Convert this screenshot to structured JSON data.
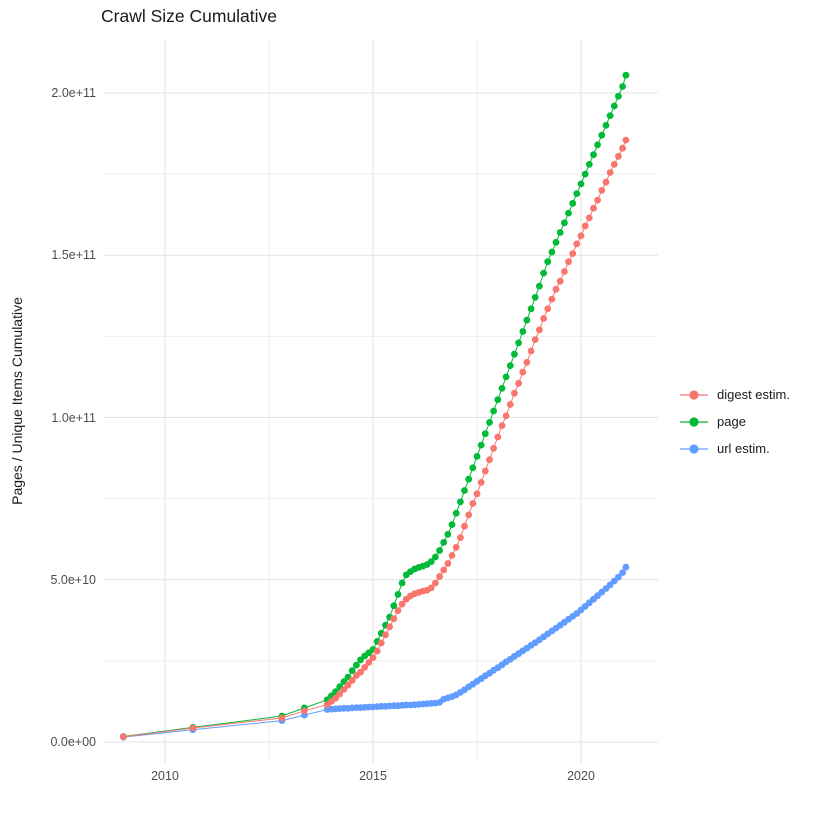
{
  "chart_data": {
    "type": "scatter",
    "title": "Crawl Size Cumulative",
    "xlabel": "",
    "ylabel": "Pages / Unique Items Cumulative",
    "value_unit": "1e9 (values below are billions of pages / items)",
    "grid": "on",
    "legend_position": "right",
    "xlim": [
      2008.5,
      2021.85
    ],
    "ylim_e9": [
      -6,
      216
    ],
    "x_axis": {
      "major_ticks": [
        2010,
        2015,
        2020
      ],
      "minor_ticks": [
        2012.5,
        2017.5
      ],
      "tick_labels": [
        "2010",
        "2015",
        "2020"
      ]
    },
    "y_axis": {
      "major_ticks_e9": [
        0,
        50,
        100,
        150,
        200
      ],
      "minor_ticks_e9": [
        25,
        75,
        125,
        175
      ],
      "tick_labels": [
        "0.0e+00",
        "5.0e+10",
        "1.0e+11",
        "1.5e+11",
        "2.0e+11"
      ]
    },
    "series": [
      {
        "name": "digest estim.",
        "color": "#F8766D",
        "points": [
          [
            2009.0,
            1.6
          ],
          [
            2010.67,
            4.3
          ],
          [
            2012.81,
            7.4
          ],
          [
            2013.35,
            9.6
          ],
          [
            2013.9,
            11.5
          ],
          [
            2014.0,
            12.5
          ],
          [
            2014.1,
            13.5
          ],
          [
            2014.2,
            14.8
          ],
          [
            2014.3,
            16.2
          ],
          [
            2014.4,
            17.5
          ],
          [
            2014.5,
            19.0
          ],
          [
            2014.6,
            20.5
          ],
          [
            2014.7,
            21.5
          ],
          [
            2014.8,
            23.0
          ],
          [
            2014.9,
            24.5
          ],
          [
            2015.0,
            26.0
          ],
          [
            2015.1,
            28.0
          ],
          [
            2015.2,
            30.5
          ],
          [
            2015.3,
            33.0
          ],
          [
            2015.4,
            35.5
          ],
          [
            2015.5,
            38.0
          ],
          [
            2015.6,
            40.5
          ],
          [
            2015.7,
            42.5
          ],
          [
            2015.8,
            44.0
          ],
          [
            2015.9,
            45.0
          ],
          [
            2016.0,
            45.7
          ],
          [
            2016.1,
            46.1
          ],
          [
            2016.2,
            46.5
          ],
          [
            2016.3,
            46.8
          ],
          [
            2016.4,
            47.5
          ],
          [
            2016.5,
            49.0
          ],
          [
            2016.6,
            51.0
          ],
          [
            2016.7,
            53.0
          ],
          [
            2016.8,
            55.0
          ],
          [
            2016.9,
            57.5
          ],
          [
            2017.0,
            60.0
          ],
          [
            2017.1,
            63.0
          ],
          [
            2017.2,
            66.5
          ],
          [
            2017.3,
            70.0
          ],
          [
            2017.4,
            73.5
          ],
          [
            2017.5,
            76.5
          ],
          [
            2017.6,
            80.0
          ],
          [
            2017.7,
            83.5
          ],
          [
            2017.8,
            87.0
          ],
          [
            2017.9,
            90.5
          ],
          [
            2018.0,
            94.0
          ],
          [
            2018.1,
            97.5
          ],
          [
            2018.2,
            100.5
          ],
          [
            2018.3,
            104.0
          ],
          [
            2018.4,
            107.5
          ],
          [
            2018.5,
            110.5
          ],
          [
            2018.6,
            114.0
          ],
          [
            2018.7,
            117.0
          ],
          [
            2018.8,
            120.5
          ],
          [
            2018.9,
            124.0
          ],
          [
            2019.0,
            127.0
          ],
          [
            2019.1,
            130.5
          ],
          [
            2019.2,
            133.5
          ],
          [
            2019.3,
            136.5
          ],
          [
            2019.4,
            139.5
          ],
          [
            2019.5,
            142.0
          ],
          [
            2019.6,
            145.0
          ],
          [
            2019.7,
            148.0
          ],
          [
            2019.8,
            150.5
          ],
          [
            2019.9,
            153.5
          ],
          [
            2020.0,
            156.0
          ],
          [
            2020.1,
            159.0
          ],
          [
            2020.2,
            161.5
          ],
          [
            2020.3,
            164.5
          ],
          [
            2020.4,
            167.0
          ],
          [
            2020.5,
            170.0
          ],
          [
            2020.6,
            172.5
          ],
          [
            2020.7,
            175.5
          ],
          [
            2020.8,
            178.0
          ],
          [
            2020.9,
            180.5
          ],
          [
            2021.0,
            183.0
          ],
          [
            2021.08,
            185.5
          ]
        ]
      },
      {
        "name": "page",
        "color": "#00BA38",
        "points": [
          [
            2009.0,
            1.7
          ],
          [
            2010.67,
            4.5
          ],
          [
            2012.81,
            8.0
          ],
          [
            2013.35,
            10.5
          ],
          [
            2013.9,
            13.0
          ],
          [
            2014.0,
            14.2
          ],
          [
            2014.1,
            15.5
          ],
          [
            2014.2,
            17.0
          ],
          [
            2014.3,
            18.6
          ],
          [
            2014.4,
            20.0
          ],
          [
            2014.5,
            22.0
          ],
          [
            2014.6,
            23.7
          ],
          [
            2014.7,
            25.3
          ],
          [
            2014.8,
            26.5
          ],
          [
            2014.9,
            27.5
          ],
          [
            2015.0,
            28.5
          ],
          [
            2015.1,
            31.0
          ],
          [
            2015.2,
            33.5
          ],
          [
            2015.3,
            36.0
          ],
          [
            2015.4,
            38.5
          ],
          [
            2015.5,
            42.0
          ],
          [
            2015.6,
            45.5
          ],
          [
            2015.7,
            49.0
          ],
          [
            2015.8,
            51.5
          ],
          [
            2015.9,
            52.5
          ],
          [
            2016.0,
            53.3
          ],
          [
            2016.1,
            53.8
          ],
          [
            2016.2,
            54.2
          ],
          [
            2016.3,
            54.7
          ],
          [
            2016.4,
            55.6
          ],
          [
            2016.5,
            57.0
          ],
          [
            2016.6,
            59.0
          ],
          [
            2016.7,
            61.5
          ],
          [
            2016.8,
            64.0
          ],
          [
            2016.9,
            67.0
          ],
          [
            2017.0,
            70.5
          ],
          [
            2017.1,
            74.0
          ],
          [
            2017.2,
            77.5
          ],
          [
            2017.3,
            81.0
          ],
          [
            2017.4,
            84.5
          ],
          [
            2017.5,
            88.0
          ],
          [
            2017.6,
            91.5
          ],
          [
            2017.7,
            95.0
          ],
          [
            2017.8,
            98.5
          ],
          [
            2017.9,
            102.0
          ],
          [
            2018.0,
            105.5
          ],
          [
            2018.1,
            109.0
          ],
          [
            2018.2,
            112.5
          ],
          [
            2018.3,
            116.0
          ],
          [
            2018.4,
            119.5
          ],
          [
            2018.5,
            123.0
          ],
          [
            2018.6,
            126.5
          ],
          [
            2018.7,
            130.0
          ],
          [
            2018.8,
            133.5
          ],
          [
            2018.9,
            137.0
          ],
          [
            2019.0,
            140.5
          ],
          [
            2019.1,
            144.5
          ],
          [
            2019.2,
            148.0
          ],
          [
            2019.3,
            151.0
          ],
          [
            2019.4,
            154.0
          ],
          [
            2019.5,
            157.0
          ],
          [
            2019.6,
            160.0
          ],
          [
            2019.7,
            163.0
          ],
          [
            2019.8,
            166.0
          ],
          [
            2019.9,
            169.0
          ],
          [
            2020.0,
            172.0
          ],
          [
            2020.1,
            175.0
          ],
          [
            2020.2,
            178.0
          ],
          [
            2020.3,
            181.0
          ],
          [
            2020.4,
            184.0
          ],
          [
            2020.5,
            187.0
          ],
          [
            2020.6,
            190.0
          ],
          [
            2020.7,
            193.0
          ],
          [
            2020.8,
            196.0
          ],
          [
            2020.9,
            199.0
          ],
          [
            2021.0,
            202.0
          ],
          [
            2021.08,
            205.5
          ]
        ]
      },
      {
        "name": "url estim.",
        "color": "#619CFF",
        "points": [
          [
            2009.0,
            1.5
          ],
          [
            2010.67,
            3.8
          ],
          [
            2012.81,
            6.6
          ],
          [
            2013.35,
            8.3
          ],
          [
            2013.9,
            10.0
          ],
          [
            2014.0,
            10.1
          ],
          [
            2014.1,
            10.2
          ],
          [
            2014.2,
            10.3
          ],
          [
            2014.3,
            10.4
          ],
          [
            2014.4,
            10.4
          ],
          [
            2014.5,
            10.5
          ],
          [
            2014.6,
            10.6
          ],
          [
            2014.7,
            10.6
          ],
          [
            2014.8,
            10.7
          ],
          [
            2014.9,
            10.8
          ],
          [
            2015.0,
            10.8
          ],
          [
            2015.1,
            10.9
          ],
          [
            2015.2,
            11.0
          ],
          [
            2015.3,
            11.0
          ],
          [
            2015.4,
            11.1
          ],
          [
            2015.5,
            11.2
          ],
          [
            2015.6,
            11.2
          ],
          [
            2015.7,
            11.3
          ],
          [
            2015.8,
            11.4
          ],
          [
            2015.9,
            11.4
          ],
          [
            2016.0,
            11.5
          ],
          [
            2016.1,
            11.6
          ],
          [
            2016.2,
            11.7
          ],
          [
            2016.3,
            11.8
          ],
          [
            2016.4,
            11.9
          ],
          [
            2016.5,
            12.0
          ],
          [
            2016.6,
            12.2
          ],
          [
            2016.7,
            13.2
          ],
          [
            2016.8,
            13.6
          ],
          [
            2016.9,
            14.0
          ],
          [
            2017.0,
            14.5
          ],
          [
            2017.1,
            15.3
          ],
          [
            2017.2,
            16.1
          ],
          [
            2017.3,
            17.0
          ],
          [
            2017.4,
            17.8
          ],
          [
            2017.5,
            18.7
          ],
          [
            2017.6,
            19.5
          ],
          [
            2017.7,
            20.4
          ],
          [
            2017.8,
            21.2
          ],
          [
            2017.9,
            22.1
          ],
          [
            2018.0,
            22.9
          ],
          [
            2018.1,
            23.8
          ],
          [
            2018.2,
            24.7
          ],
          [
            2018.3,
            25.5
          ],
          [
            2018.4,
            26.4
          ],
          [
            2018.5,
            27.2
          ],
          [
            2018.6,
            28.1
          ],
          [
            2018.7,
            28.9
          ],
          [
            2018.8,
            29.8
          ],
          [
            2018.9,
            30.6
          ],
          [
            2019.0,
            31.5
          ],
          [
            2019.1,
            32.4
          ],
          [
            2019.2,
            33.3
          ],
          [
            2019.3,
            34.2
          ],
          [
            2019.4,
            35.1
          ],
          [
            2019.5,
            36.0
          ],
          [
            2019.6,
            36.9
          ],
          [
            2019.7,
            37.8
          ],
          [
            2019.8,
            38.7
          ],
          [
            2019.9,
            39.6
          ],
          [
            2020.0,
            40.7
          ],
          [
            2020.1,
            41.8
          ],
          [
            2020.2,
            42.9
          ],
          [
            2020.3,
            44.0
          ],
          [
            2020.4,
            45.1
          ],
          [
            2020.5,
            46.2
          ],
          [
            2020.6,
            47.3
          ],
          [
            2020.7,
            48.4
          ],
          [
            2020.8,
            49.6
          ],
          [
            2020.9,
            50.8
          ],
          [
            2021.0,
            52.2
          ],
          [
            2021.08,
            53.9
          ]
        ]
      }
    ],
    "draw_order": [
      1,
      2,
      0
    ],
    "grid_colors": {
      "major": "#e3e3e3",
      "minor": "#efefef"
    }
  },
  "legend": {
    "items": [
      {
        "label": "digest estim."
      },
      {
        "label": "page"
      },
      {
        "label": "url estim."
      }
    ]
  }
}
